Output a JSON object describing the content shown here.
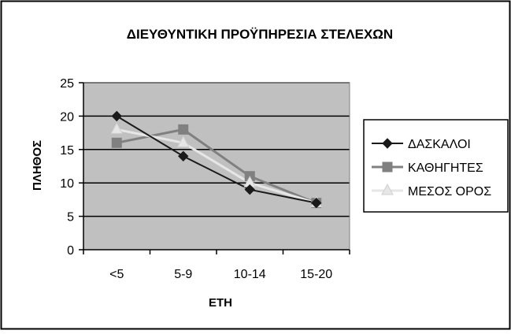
{
  "chart_data": {
    "type": "line",
    "title": "ΔΙΕΥΘΥΝΤΙΚΗ ΠΡΟΫΠΗΡΕΣΙΑ ΣΤΕΛΕΧΩΝ",
    "xlabel": "ΕΤΗ",
    "ylabel": "ΠΛΗΘΟΣ",
    "categories": [
      "<5",
      "5-9",
      "10-14",
      "15-20"
    ],
    "ylim": [
      0,
      25
    ],
    "yticks": [
      0,
      5,
      10,
      15,
      20,
      25
    ],
    "grid": true,
    "legend_position": "right",
    "series": [
      {
        "name": "ΔΑΣΚΑΛΟΙ",
        "values": [
          20,
          14,
          9,
          7
        ],
        "color": "#1a1a1a",
        "marker": "diamond"
      },
      {
        "name": "ΚΑΘΗΓΗΤΕΣ",
        "values": [
          16,
          18,
          11,
          7
        ],
        "color": "#808080",
        "marker": "square"
      },
      {
        "name": "ΜΕΣΟΣ ΟΡΟΣ",
        "values": [
          18,
          16,
          10,
          7
        ],
        "color": "#e6e6e6",
        "marker": "triangle"
      }
    ],
    "plot_background": "#c0c0c0"
  }
}
